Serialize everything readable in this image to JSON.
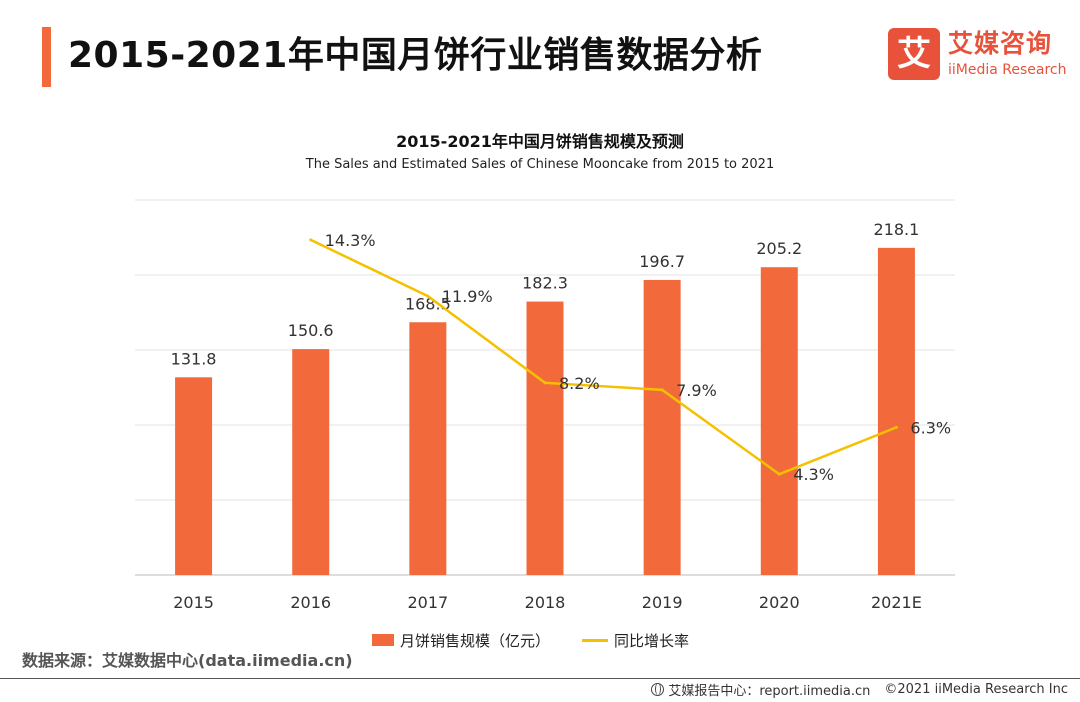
{
  "header": {
    "title": "2015-2021年中国月饼行业销售数据分析"
  },
  "brand": {
    "mark": "艾",
    "name_cn": "艾媒咨询",
    "name_en": "iiMedia Research",
    "color": "#e8523b"
  },
  "chart_data": {
    "type": "bar",
    "title": "2015-2021年中国月饼销售规模及预测",
    "subtitle": "The Sales and Estimated Sales of Chinese Mooncake from 2015 to 2021",
    "categories": [
      "2015",
      "2016",
      "2017",
      "2018",
      "2019",
      "2020",
      "2021E"
    ],
    "series": [
      {
        "name": "月饼销售规模（亿元）",
        "type": "bar",
        "color": "#f26a3c",
        "values": [
          131.8,
          150.6,
          168.5,
          182.3,
          196.7,
          205.2,
          218.1
        ],
        "labels": [
          "131.8",
          "150.6",
          "168.5",
          "182.3",
          "196.7",
          "205.2",
          "218.1"
        ]
      },
      {
        "name": "同比增长率",
        "type": "line",
        "color": "#f5c000",
        "values": [
          null,
          14.3,
          11.9,
          8.2,
          7.9,
          4.3,
          6.3
        ],
        "labels": [
          "",
          "14.3%",
          "11.9%",
          "8.2%",
          "7.9%",
          "4.3%",
          "6.3%"
        ]
      }
    ],
    "y_left_range": [
      0,
      250
    ],
    "y_right_range": [
      0,
      16
    ],
    "grid": true,
    "legend_position": "bottom"
  },
  "source": "数据来源：艾媒数据中心(data.iimedia.cn)",
  "footer": {
    "report_center": "艾媒报告中心：report.iimedia.cn",
    "copyright": "©2021  iiMedia Research  Inc"
  }
}
